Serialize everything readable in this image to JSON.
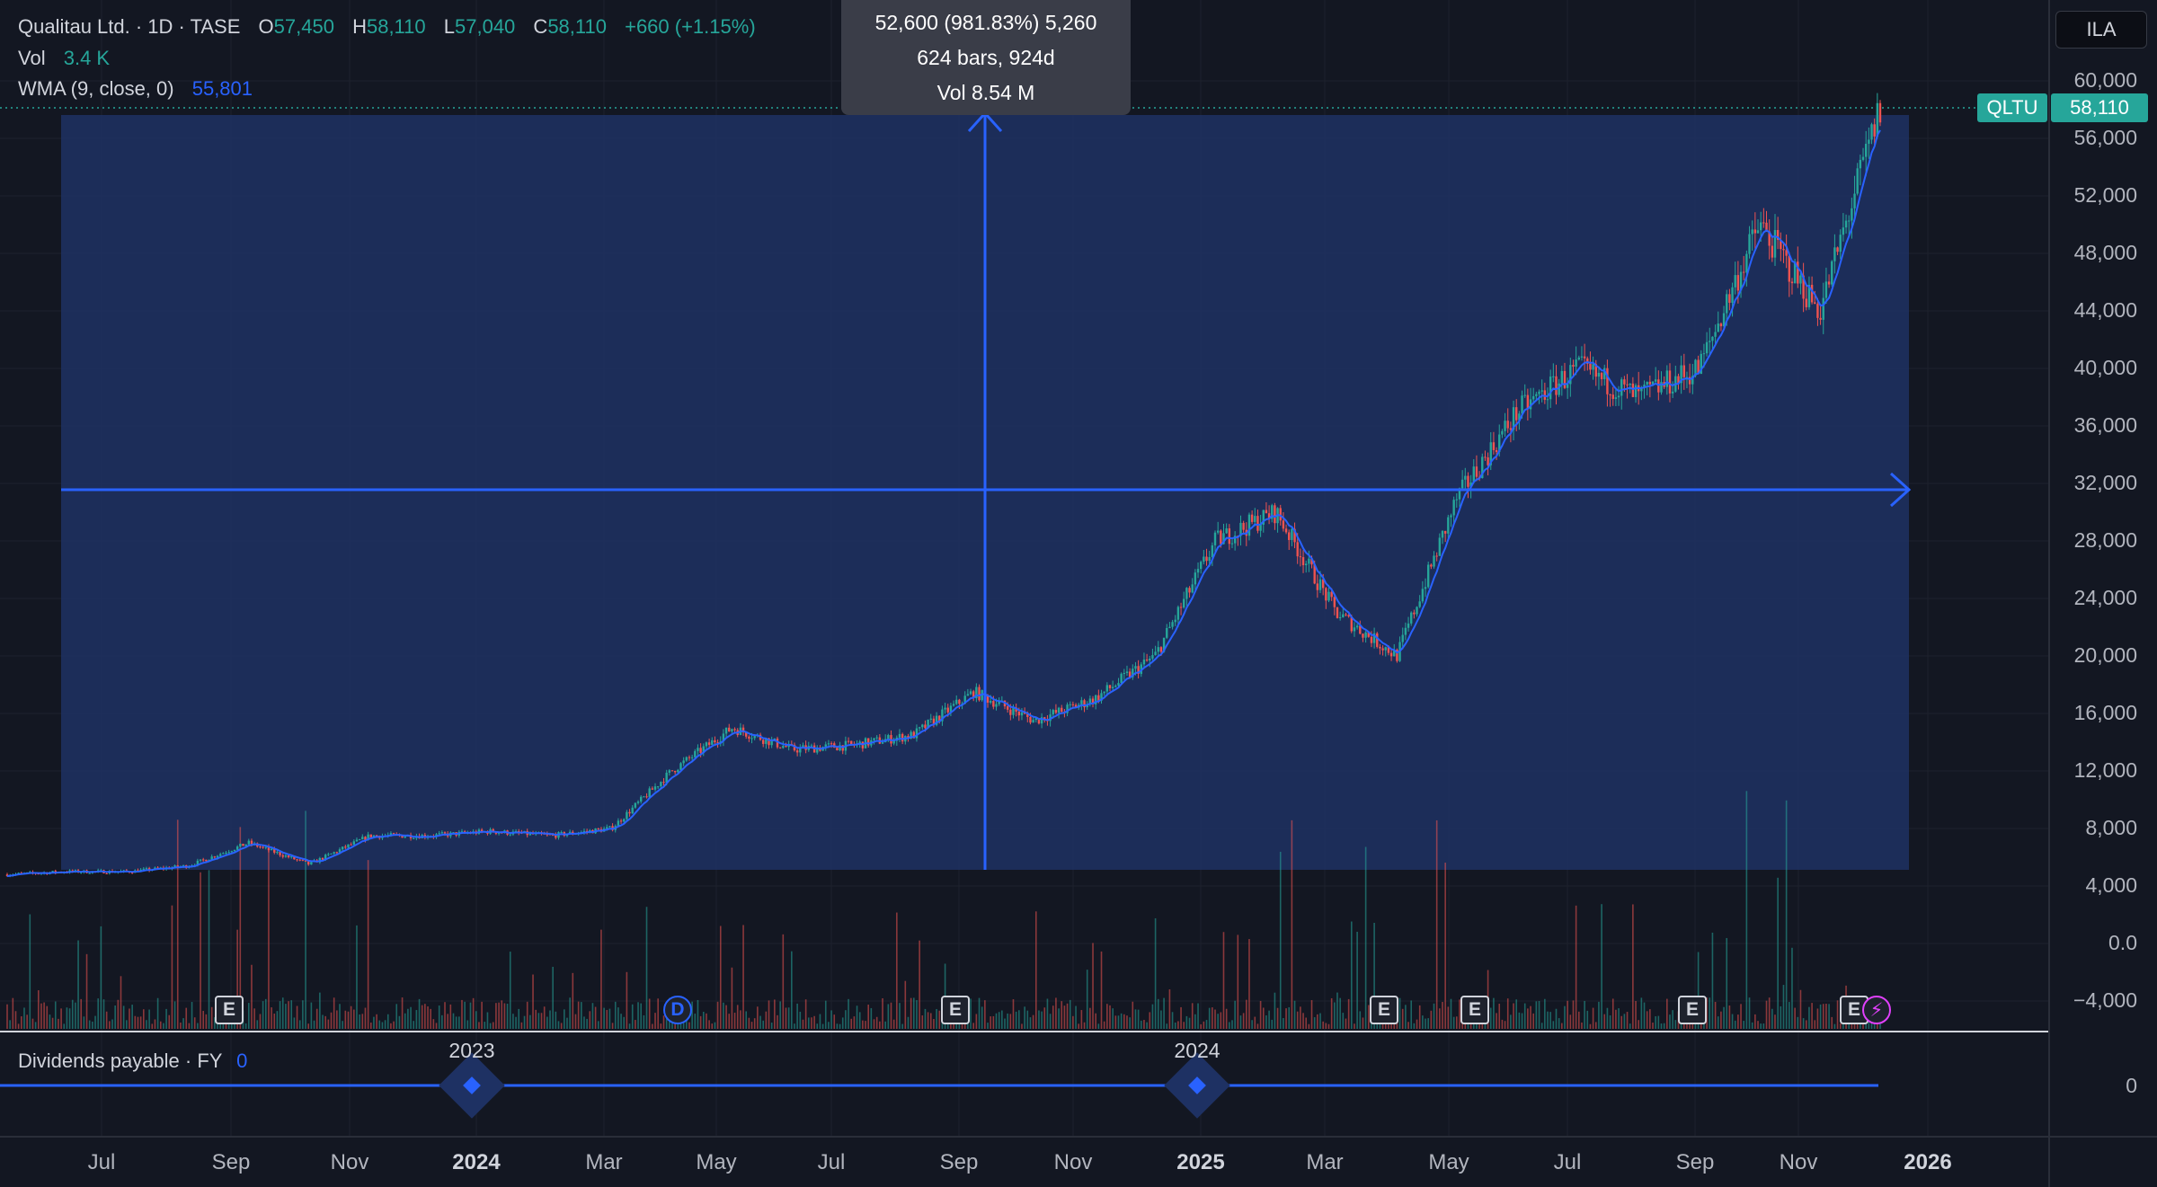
{
  "header": {
    "symbol_name": "Qualitau Ltd.",
    "interval_exchange": " · 1D · TASE",
    "open_label": "O",
    "open": "57,450",
    "high_label": "H",
    "high": "58,110",
    "low_label": "L",
    "low": "57,040",
    "close_label": "C",
    "close": "58,110",
    "change": "+660 (+1.15%)"
  },
  "volume": {
    "label": "Vol",
    "value": "3.4 K"
  },
  "wma": {
    "label": "WMA (9, close, 0)",
    "value": "55,801"
  },
  "currency_button": "ILA",
  "price_tag": {
    "ticker": "QLTU",
    "price": "58,110"
  },
  "measure_tooltip": {
    "line1": "52,600 (981.83%) 5,260",
    "line2": "624 bars, 924d",
    "line3": "Vol 8.54 M"
  },
  "price_axis": [
    "60,000",
    "56,000",
    "52,000",
    "48,000",
    "44,000",
    "40,000",
    "36,000",
    "32,000",
    "28,000",
    "24,000",
    "20,000",
    "16,000",
    "12,000",
    "8,000",
    "4,000",
    "0.0",
    "−4,000"
  ],
  "time_axis": [
    {
      "label": "Jul",
      "bold": false
    },
    {
      "label": "Sep",
      "bold": false
    },
    {
      "label": "Nov",
      "bold": false
    },
    {
      "label": "2024",
      "bold": true
    },
    {
      "label": "Mar",
      "bold": false
    },
    {
      "label": "May",
      "bold": false
    },
    {
      "label": "Jul",
      "bold": false
    },
    {
      "label": "Sep",
      "bold": false
    },
    {
      "label": "Nov",
      "bold": false
    },
    {
      "label": "2025",
      "bold": true
    },
    {
      "label": "Mar",
      "bold": false
    },
    {
      "label": "May",
      "bold": false
    },
    {
      "label": "Jul",
      "bold": false
    },
    {
      "label": "Sep",
      "bold": false
    },
    {
      "label": "Nov",
      "bold": false
    },
    {
      "label": "2026",
      "bold": true
    }
  ],
  "events": [
    {
      "type": "E"
    },
    {
      "type": "D"
    },
    {
      "type": "E"
    },
    {
      "type": "E"
    },
    {
      "type": "E"
    },
    {
      "type": "E"
    },
    {
      "type": "E"
    },
    {
      "type": "⚡"
    }
  ],
  "dividends": {
    "title": "Dividends payable · FY",
    "value": "0",
    "axis_value": "0",
    "years": [
      "2023",
      "2024"
    ]
  },
  "colors": {
    "up": "#26a69a",
    "down": "#ef5350",
    "wma": "#2962ff",
    "measure": "#2962ff"
  },
  "chart_data": {
    "type": "candlestick",
    "ylim": [
      -4000,
      60000
    ],
    "x": [
      "2023-05",
      "2023-06",
      "2023-07",
      "2023-08",
      "2023-09",
      "2023-10",
      "2023-11",
      "2023-12",
      "2024-01",
      "2024-02",
      "2024-03",
      "2024-04",
      "2024-05",
      "2024-06",
      "2024-07",
      "2024-08",
      "2024-09",
      "2024-10",
      "2024-11",
      "2024-12",
      "2025-01",
      "2025-02",
      "2025-03",
      "2025-04",
      "2025-05",
      "2025-06",
      "2025-07",
      "2025-08",
      "2025-09",
      "2025-10",
      "2025-11",
      "2025-12"
    ],
    "close": [
      4800,
      5000,
      5000,
      5400,
      7000,
      5500,
      7500,
      7500,
      7800,
      7500,
      8000,
      12000,
      15000,
      13500,
      13800,
      14500,
      17500,
      15500,
      17000,
      20000,
      28000,
      30000,
      23000,
      20000,
      31000,
      37000,
      40000,
      38000,
      40000,
      50000,
      44000,
      58110
    ],
    "wma_last": 55801,
    "measure": {
      "change": 52600,
      "percent": 981.83,
      "bars": 624,
      "days": 924,
      "volume": "8.54 M"
    }
  }
}
